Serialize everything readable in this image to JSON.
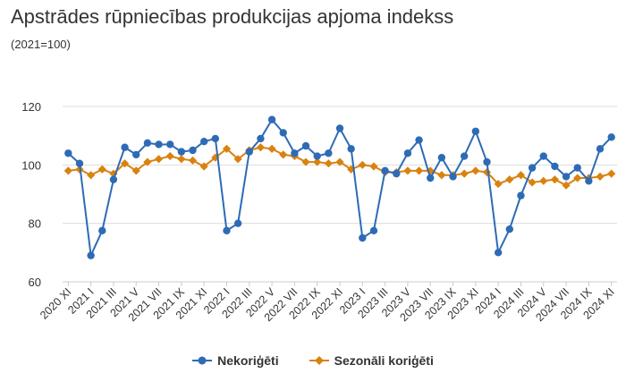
{
  "title": "Apstrādes rūpniecības produkcijas apjoma indekss",
  "subtitle": "(2021=100)",
  "colors": {
    "series1": "#2e6bb5",
    "series2": "#d9820f",
    "grid": "#dddddd",
    "axis": "#cccccc"
  },
  "chart_data": {
    "type": "line",
    "x": [
      "2020 XI",
      "2020 XII",
      "2021 I",
      "2021 II",
      "2021 III",
      "2021 IV",
      "2021 V",
      "2021 VI",
      "2021 VII",
      "2021 VIII",
      "2021 IX",
      "2021 X",
      "2021 XI",
      "2021 XII",
      "2022 I",
      "2022 II",
      "2022 III",
      "2022 IV",
      "2022 V",
      "2022 VI",
      "2022 VII",
      "2022 VIII",
      "2022 IX",
      "2022 X",
      "2022 XI",
      "2022 XII",
      "2023 I",
      "2023 II",
      "2023 III",
      "2023 IV",
      "2023 V",
      "2023 VI",
      "2023 VII",
      "2023 VIII",
      "2023 IX",
      "2023 X",
      "2023 XI",
      "2023 XII",
      "2024 I",
      "2024 II",
      "2024 III",
      "2024 IV",
      "2024 V",
      "2024 VI",
      "2024 VII",
      "2024 VIII",
      "2024 IX",
      "2024 X",
      "2024 XI"
    ],
    "tick_labels": [
      "2020 XI",
      "2021 I",
      "2021 III",
      "2021 V",
      "2021 VII",
      "2021 IX",
      "2021 XI",
      "2022 I",
      "2022 III",
      "2022 V",
      "2022 VII",
      "2022 IX",
      "2022 XI",
      "2023 I",
      "2023 III",
      "2023 V",
      "2023 VII",
      "2023 IX",
      "2023 XI",
      "2024 I",
      "2024 III",
      "2024 V",
      "2024 VII",
      "2024 IX",
      "2024 XI"
    ],
    "y_ticks": [
      60,
      80,
      100,
      120
    ],
    "ylim": [
      60,
      120
    ],
    "grid": true,
    "legend_position": "bottom",
    "series": [
      {
        "name": "Nekoriģēti",
        "values": [
          104,
          100.5,
          69,
          77.5,
          95,
          106,
          103.5,
          107.5,
          107,
          107,
          104.5,
          105,
          108,
          109,
          77.5,
          80,
          104.5,
          109,
          115.5,
          111,
          104,
          106.5,
          103,
          104,
          112.5,
          105.5,
          75,
          77.5,
          98,
          97,
          104,
          108.5,
          95.5,
          102.5,
          96,
          103,
          111.5,
          101,
          70,
          78,
          89.5,
          99,
          103,
          99.5,
          96,
          99,
          94.5,
          105.5,
          109.5
        ]
      },
      {
        "name": "Sezonāli koriģēti",
        "values": [
          98,
          98.5,
          96.5,
          98.5,
          97,
          100.5,
          98,
          101,
          102,
          103,
          102,
          101.5,
          99.5,
          102.5,
          105.5,
          102,
          105,
          106,
          105.5,
          103.5,
          103,
          101,
          101,
          100.5,
          101,
          98.5,
          100,
          99.5,
          97.5,
          97.5,
          98,
          98,
          98,
          96.5,
          96.5,
          97,
          98,
          97.5,
          93.5,
          95,
          96.5,
          94,
          94.5,
          95,
          93,
          95.5,
          95.5,
          96,
          97
        ]
      }
    ]
  }
}
